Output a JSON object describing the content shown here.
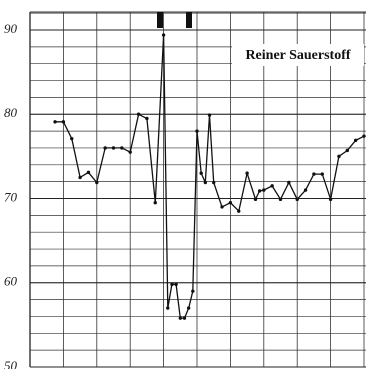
{
  "chart_data": {
    "type": "line",
    "annotation": "Reiner Sauerstoff",
    "x": [
      3,
      4,
      5,
      6,
      7,
      8,
      9,
      10,
      11,
      12,
      13,
      14,
      15,
      16,
      16.5,
      17,
      17.5,
      18,
      18.5,
      19,
      19.5,
      20,
      20.5,
      21,
      21.5,
      22,
      23,
      24,
      25,
      26,
      27,
      27.5,
      28,
      29,
      30,
      31,
      32,
      33,
      34,
      35,
      36,
      37,
      38,
      39,
      40
    ],
    "values": [
      79.1,
      79.1,
      77.1,
      72.5,
      73.1,
      71.9,
      76.0,
      76.0,
      76.0,
      75.5,
      80.0,
      79.5,
      69.5,
      89.4,
      57.0,
      59.8,
      59.8,
      55.8,
      55.8,
      57.0,
      59.0,
      78.0,
      73.0,
      71.9,
      79.9,
      71.9,
      69.0,
      69.5,
      68.5,
      73.0,
      69.9,
      70.9,
      71.0,
      71.5,
      69.9,
      71.9,
      69.9,
      71.0,
      72.9,
      72.9,
      69.9,
      75.0,
      75.7,
      76.9,
      77.4
    ],
    "color": "#111111",
    "xlim": [
      0,
      40
    ],
    "ylim": [
      50,
      90
    ],
    "yticks": [
      50,
      60,
      70,
      80,
      90
    ],
    "grid": true
  }
}
